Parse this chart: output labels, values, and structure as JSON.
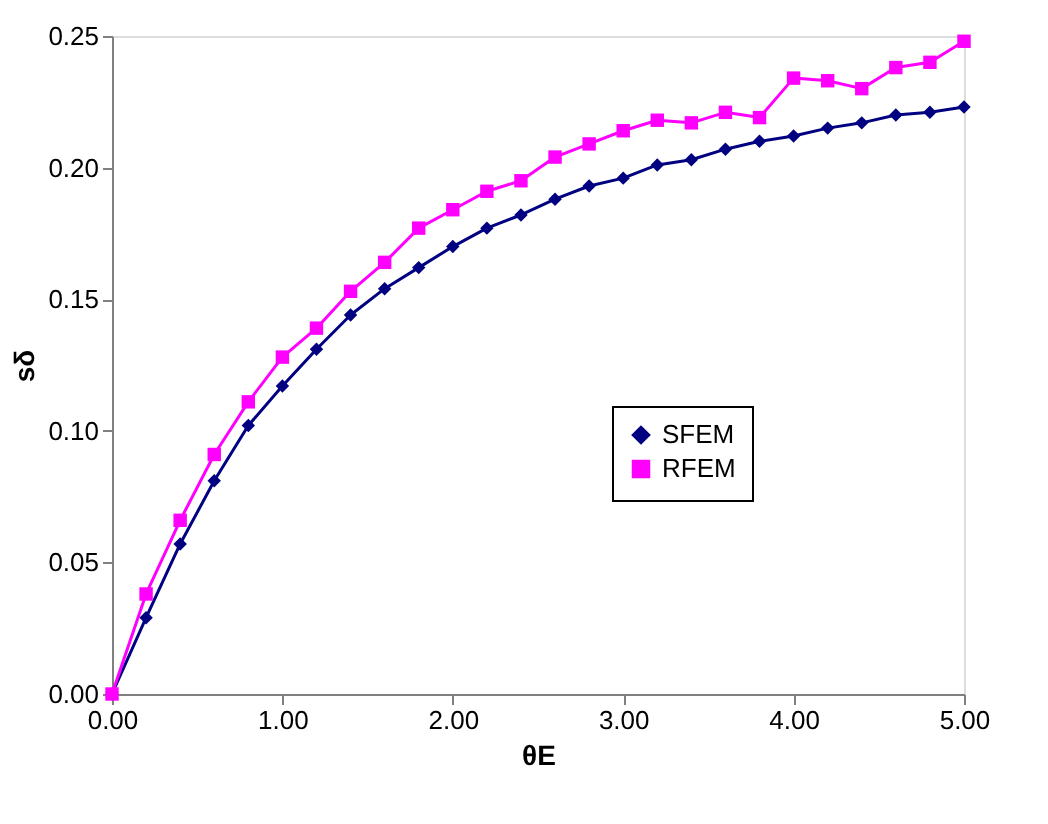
{
  "chart_data": {
    "type": "line",
    "xlabel": "θE",
    "ylabel": "sδ",
    "x": [
      0,
      0.2,
      0.4,
      0.6,
      0.8,
      1.0,
      1.2,
      1.4,
      1.6,
      1.8,
      2.0,
      2.2,
      2.4,
      2.6,
      2.8,
      3.0,
      3.2,
      3.4,
      3.6,
      3.8,
      4.0,
      4.2,
      4.4,
      4.6,
      4.8,
      5.0
    ],
    "series": [
      {
        "name": "SFEM",
        "color": "#000080",
        "marker": "diamond",
        "values": [
          0,
          0.029,
          0.057,
          0.081,
          0.102,
          0.117,
          0.131,
          0.144,
          0.154,
          0.162,
          0.17,
          0.177,
          0.182,
          0.188,
          0.193,
          0.196,
          0.201,
          0.203,
          0.207,
          0.21,
          0.212,
          0.215,
          0.217,
          0.22,
          0.221,
          0.223
        ]
      },
      {
        "name": "RFEM",
        "color": "#ff00ff",
        "marker": "square",
        "values": [
          0,
          0.038,
          0.066,
          0.091,
          0.111,
          0.128,
          0.139,
          0.153,
          0.164,
          0.177,
          0.184,
          0.191,
          0.195,
          0.204,
          0.209,
          0.214,
          0.218,
          0.217,
          0.221,
          0.219,
          0.234,
          0.233,
          0.23,
          0.238,
          0.24,
          0.248
        ]
      }
    ],
    "xlim": [
      0,
      5
    ],
    "xticks": [
      {
        "value": 0,
        "label": "0.00"
      },
      {
        "value": 1,
        "label": "1.00"
      },
      {
        "value": 2,
        "label": "2.00"
      },
      {
        "value": 3,
        "label": "3.00"
      },
      {
        "value": 4,
        "label": "4.00"
      },
      {
        "value": 5,
        "label": "5.00"
      }
    ],
    "ylim": [
      0,
      0.25
    ],
    "yticks": [
      {
        "value": 0,
        "label": "0.00"
      },
      {
        "value": 0.05,
        "label": "0.05"
      },
      {
        "value": 0.1,
        "label": "0.10"
      },
      {
        "value": 0.15,
        "label": "0.15"
      },
      {
        "value": 0.2,
        "label": "0.20"
      },
      {
        "value": 0.25,
        "label": "0.25"
      }
    ],
    "grid": false,
    "legend": "right",
    "line_style": "solid"
  }
}
